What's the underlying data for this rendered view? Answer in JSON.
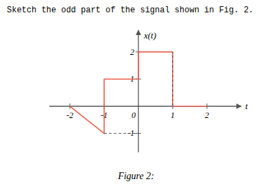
{
  "chart_data": {
    "type": "line",
    "title": "Sketch the odd part of the signal shown in Fig. 2.",
    "annotations": [
      {
        "text": "Figure 2:"
      }
    ],
    "x_label": "t",
    "y_label": "x(t)",
    "series": [
      {
        "color": "#e8604c",
        "x": [
          -2,
          -1,
          -1,
          0,
          0,
          1,
          1,
          2
        ],
        "values": [
          0,
          -1,
          1,
          1,
          2,
          2,
          0,
          0
        ]
      },
      {
        "color": "#555555",
        "line_style": "dashed",
        "x": [
          -1,
          0,
          1,
          1,
          1
        ],
        "values": [
          -1,
          -1,
          null,
          0,
          2
        ]
      }
    ],
    "xlim": [
      -2.6,
      3.0
    ],
    "ylim": [
      -1.7,
      2.8
    ],
    "xticks": [
      -2,
      -1,
      0,
      1,
      2
    ],
    "yticks": [
      -1,
      1,
      2
    ],
    "axis_color": "#555555",
    "grid": false
  }
}
